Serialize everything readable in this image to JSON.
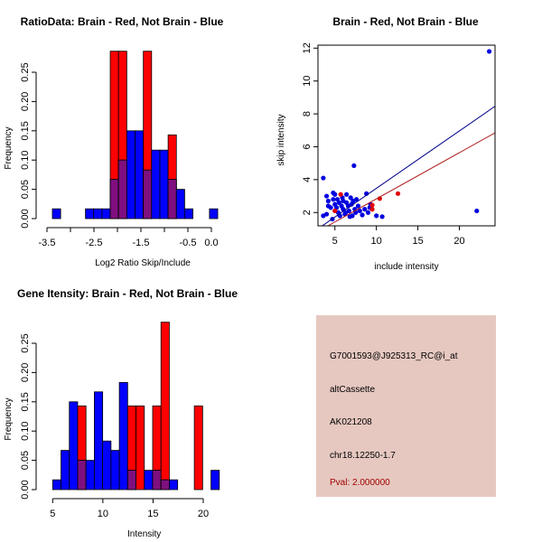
{
  "colors": {
    "red": "#ff0000",
    "blue": "#0000ff",
    "overlap": "#7f0f7f",
    "panel": "#e6c8c0",
    "pval": "#a00000",
    "blue_line": "#00008b",
    "red_line": "#b22222"
  },
  "chart_data": [
    {
      "type": "bar",
      "id": "ratio",
      "title": "RatioData: Brain - Red, Not Brain - Blue",
      "xlabel": "Log2 Ratio Skip/Include",
      "ylabel": "Frequency",
      "bin_start": -3.385,
      "bin_width": 0.176,
      "series": [
        {
          "name": "Brain",
          "color": "red",
          "values": [
            0,
            0,
            0,
            0,
            0,
            0,
            0,
            0.286,
            0.286,
            0,
            0,
            0.286,
            0,
            0,
            0.143,
            0,
            0,
            0,
            0,
            0
          ]
        },
        {
          "name": "Not Brain",
          "color": "blue",
          "values": [
            0.0167,
            0,
            0,
            0,
            0.0167,
            0.0167,
            0.0167,
            0.067,
            0.1,
            0.15,
            0.15,
            0.083,
            0.117,
            0.117,
            0.067,
            0.05,
            0.0167,
            0,
            0,
            0.0167
          ]
        }
      ],
      "xlim": [
        -3.5,
        0.25
      ],
      "ylim": [
        0,
        0.29
      ],
      "xticks": [
        -3.5,
        -3,
        -2.5,
        -2,
        -1.5,
        -1,
        -0.5,
        0
      ],
      "xtick_labels": [
        "-3.5",
        "",
        "-2.5",
        "",
        "-1.5",
        "",
        "-0.5",
        "0.0"
      ],
      "yticks": [
        0,
        0.05,
        0.1,
        0.15,
        0.2,
        0.25
      ],
      "ytick_labels": [
        "0.00",
        "0.05",
        "0.10",
        "0.15",
        "0.20",
        "0.25"
      ]
    },
    {
      "type": "scatter",
      "id": "scatter",
      "title": "Brain - Red, Not Brain - Blue",
      "xlabel": "include intensity",
      "ylabel": "skip intensity",
      "xlim": [
        2.96,
        24.3
      ],
      "ylim": [
        1.19,
        12.18
      ],
      "xticks": [
        5,
        10,
        15,
        20
      ],
      "xtick_labels": [
        "5",
        "10",
        "15",
        "20"
      ],
      "yticks": [
        2,
        4,
        6,
        8,
        10,
        12
      ],
      "ytick_labels": [
        "2",
        "4",
        "6",
        "8",
        "10",
        "12"
      ],
      "series": [
        {
          "name": "Not Brain",
          "color": "blue",
          "points": [
            [
              3.6,
              4.1
            ],
            [
              23.6,
              11.8
            ],
            [
              7.3,
              4.85
            ],
            [
              22.1,
              2.1
            ],
            [
              3.6,
              1.8
            ],
            [
              4,
              1.9
            ],
            [
              4,
              3
            ],
            [
              4.2,
              2.7
            ],
            [
              4.2,
              2.4
            ],
            [
              4.5,
              2.3
            ],
            [
              4.7,
              1.6
            ],
            [
              4.8,
              3.2
            ],
            [
              4.8,
              2.8
            ],
            [
              5,
              3.1
            ],
            [
              5,
              2.5
            ],
            [
              5.2,
              2.3
            ],
            [
              5.4,
              2.0
            ],
            [
              5.5,
              2.6
            ],
            [
              5.6,
              1.8
            ],
            [
              5.8,
              2.4
            ],
            [
              6,
              2.7
            ],
            [
              6,
              2.2
            ],
            [
              6.2,
              1.9
            ],
            [
              6.4,
              3.1
            ],
            [
              6.4,
              2.6
            ],
            [
              6.6,
              2.4
            ],
            [
              6.7,
              2.1
            ],
            [
              6.8,
              1.75
            ],
            [
              7,
              2.5
            ],
            [
              7.1,
              1.8
            ],
            [
              7.2,
              2.7
            ],
            [
              7.4,
              2.2
            ],
            [
              7.6,
              2.8
            ],
            [
              7.8,
              2.4
            ],
            [
              8,
              2.1
            ],
            [
              8.3,
              1.85
            ],
            [
              8.8,
              3.15
            ],
            [
              9,
              2.0
            ],
            [
              9.2,
              2.3
            ],
            [
              9.3,
              2.5
            ],
            [
              10,
              1.8
            ],
            [
              10.7,
              1.75
            ],
            [
              5.9,
              2.9
            ],
            [
              6.3,
              2.0
            ],
            [
              5.3,
              2.8
            ],
            [
              7.5,
              2.0
            ],
            [
              8.6,
              2.2
            ],
            [
              6.9,
              2.9
            ]
          ],
          "fit": {
            "slope": 0.349,
            "intercept": -0.02
          }
        },
        {
          "name": "Brain",
          "color": "red",
          "points": [
            [
              5.7,
              3.1
            ],
            [
              5,
              2.1
            ],
            [
              9.5,
              2.45
            ],
            [
              9.5,
              2.2
            ],
            [
              10.4,
              2.85
            ],
            [
              12.6,
              3.15
            ]
          ],
          "fit": {
            "slope": 0.281,
            "intercept": 0.02
          }
        }
      ]
    },
    {
      "type": "bar",
      "id": "intensity",
      "title": "Gene Itensity: Brain - Red, Not Brain - Blue",
      "xlabel": "Intensity",
      "ylabel": "Frequency",
      "bin_start": 5.0,
      "bin_width": 0.83,
      "series": [
        {
          "name": "Brain",
          "color": "red",
          "values": [
            0,
            0,
            0,
            0.143,
            0,
            0,
            0,
            0,
            0,
            0.143,
            0.143,
            0,
            0.143,
            0.286,
            0,
            0,
            0,
            0.143,
            0,
            0
          ]
        },
        {
          "name": "Not Brain",
          "color": "blue",
          "values": [
            0.0167,
            0.067,
            0.15,
            0.05,
            0.05,
            0.167,
            0.083,
            0.067,
            0.183,
            0.033,
            0,
            0.033,
            0.033,
            0.0167,
            0.0167,
            0,
            0,
            0,
            0,
            0.033
          ]
        }
      ],
      "xlim": [
        3.95,
        22.5
      ],
      "ylim": [
        0,
        0.29
      ],
      "xticks": [
        5,
        10,
        15,
        20
      ],
      "xtick_labels": [
        "5",
        "10",
        "15",
        "20"
      ],
      "yticks": [
        0,
        0.05,
        0.1,
        0.15,
        0.2,
        0.25
      ],
      "ytick_labels": [
        "0.00",
        "0.05",
        "0.10",
        "0.15",
        "0.20",
        "0.25"
      ]
    }
  ],
  "info_panel": {
    "probe": "G7001593@J925313_RC@i_at",
    "event_type": "altCassette",
    "accession": "AK021208",
    "location": "chr18.12250-1.7",
    "pval": "Pval: 2.000000"
  }
}
